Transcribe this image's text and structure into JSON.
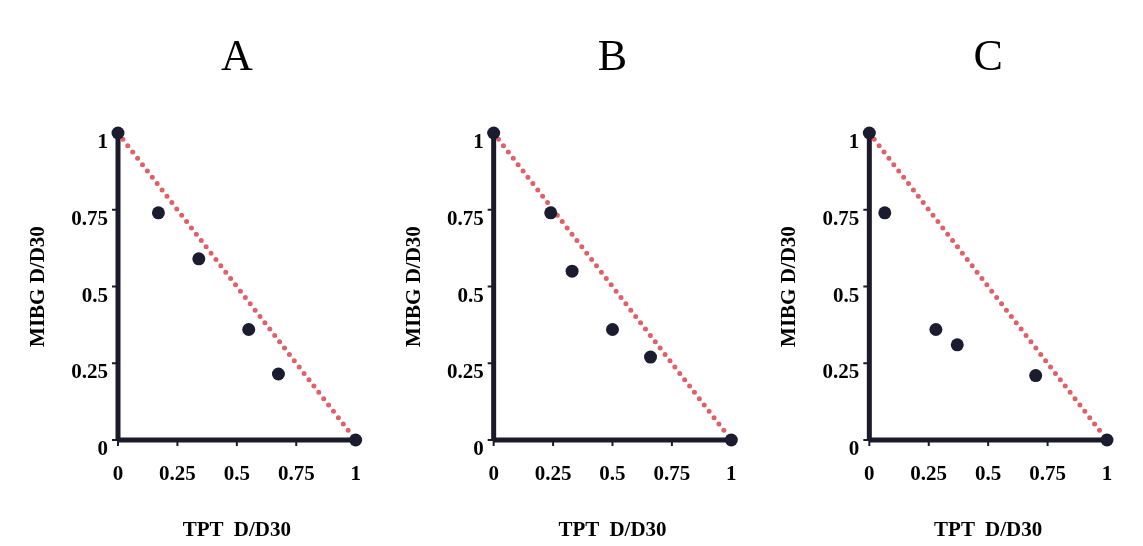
{
  "chart_data": [
    {
      "type": "scatter",
      "title": "A",
      "xlabel": "TPT  D/D30",
      "ylabel": "MIBG D/D30",
      "xlim": [
        0,
        1
      ],
      "ylim": [
        0,
        1
      ],
      "xticks": [
        0,
        0.25,
        0.5,
        0.75,
        1
      ],
      "yticks": [
        0,
        0.25,
        0.5,
        0.75,
        1
      ],
      "grid": false,
      "series": [
        {
          "type": "line",
          "color": "#e0606a",
          "line_style": "dotted",
          "marker": "none",
          "x": [
            0,
            1
          ],
          "values": [
            1,
            0
          ]
        },
        {
          "color": "#1c1c30",
          "marker": "circle",
          "x": [
            0,
            0.17,
            0.34,
            0.55,
            0.675,
            1
          ],
          "values": [
            1,
            0.74,
            0.59,
            0.36,
            0.215,
            0
          ]
        }
      ]
    },
    {
      "type": "scatter",
      "title": "B",
      "xlabel": "TPT  D/D30",
      "ylabel": "MIBG D/D30",
      "xlim": [
        0,
        1
      ],
      "ylim": [
        0,
        1
      ],
      "xticks": [
        0,
        0.25,
        0.5,
        0.75,
        1
      ],
      "yticks": [
        0,
        0.25,
        0.5,
        0.75,
        1
      ],
      "grid": false,
      "series": [
        {
          "type": "line",
          "color": "#e0606a",
          "line_style": "dotted",
          "marker": "none",
          "x": [
            0,
            1
          ],
          "values": [
            1,
            0
          ]
        },
        {
          "color": "#1c1c30",
          "marker": "circle",
          "x": [
            0,
            0.24,
            0.33,
            0.5,
            0.66,
            1
          ],
          "values": [
            1,
            0.74,
            0.55,
            0.36,
            0.27,
            0
          ]
        }
      ]
    },
    {
      "type": "scatter",
      "title": "C",
      "xlabel": "TPT  D/D30",
      "ylabel": "MIBG D/D30",
      "xlim": [
        0,
        1
      ],
      "ylim": [
        0,
        1
      ],
      "xticks": [
        0,
        0.25,
        0.5,
        0.75,
        1
      ],
      "yticks": [
        0,
        0.25,
        0.5,
        0.75,
        1
      ],
      "grid": false,
      "series": [
        {
          "type": "line",
          "color": "#e0606a",
          "line_style": "dotted",
          "marker": "none",
          "x": [
            0,
            1
          ],
          "values": [
            1,
            0
          ]
        },
        {
          "color": "#1c1c30",
          "marker": "circle",
          "x": [
            0,
            0.065,
            0.28,
            0.37,
            0.7,
            1
          ],
          "values": [
            1,
            0.74,
            0.36,
            0.31,
            0.21,
            0
          ]
        }
      ]
    }
  ]
}
